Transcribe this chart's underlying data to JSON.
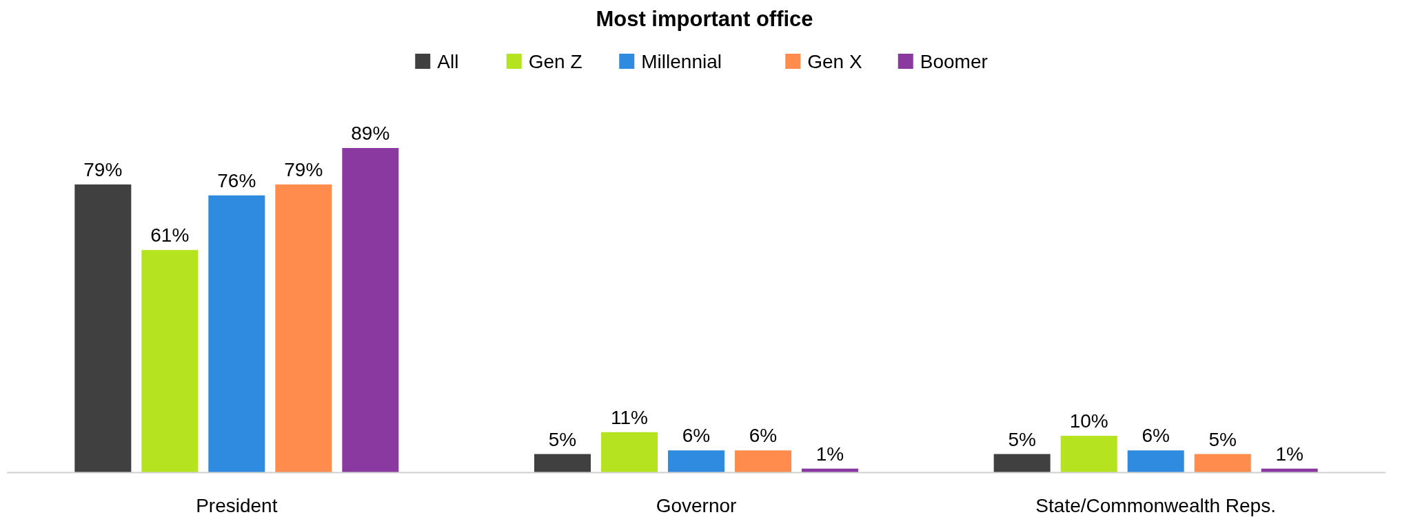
{
  "chart_data": {
    "type": "bar",
    "title": "Most important office",
    "categories": [
      "President",
      "Governor",
      "State/Commonwealth Reps."
    ],
    "series": [
      {
        "name": "All",
        "color": "#404040",
        "values": [
          79,
          5,
          5
        ],
        "value_labels": [
          "79%",
          "5%",
          "5%"
        ]
      },
      {
        "name": "Gen Z",
        "color": "#b5e31f",
        "values": [
          61,
          11,
          10
        ],
        "value_labels": [
          "61%",
          "11%",
          "10%"
        ]
      },
      {
        "name": "Millennial",
        "color": "#2e8be0",
        "values": [
          76,
          6,
          6
        ],
        "value_labels": [
          "76%",
          "6%",
          "6%"
        ]
      },
      {
        "name": "Gen X",
        "color": "#ff8c4d",
        "values": [
          79,
          6,
          5
        ],
        "value_labels": [
          "79%",
          "6%",
          "5%"
        ]
      },
      {
        "name": "Boomer",
        "color": "#8a39a0",
        "values": [
          89,
          1,
          1
        ],
        "value_labels": [
          "89%",
          "1%",
          "1%"
        ]
      }
    ],
    "legend": "top"
  }
}
